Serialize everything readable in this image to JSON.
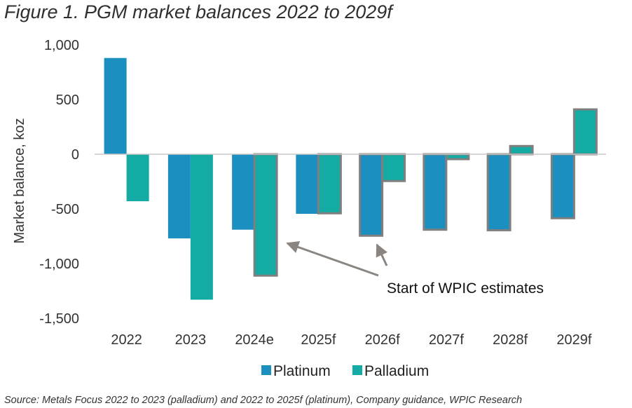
{
  "title": "Figure 1. PGM market balances 2022 to 2029f",
  "source": "Source: Metals Focus 2022 to 2023 (palladium) and 2022 to 2025f (platinum), Company guidance, WPIC Research",
  "chart_data": {
    "type": "bar",
    "title": "Figure 1. PGM market balances 2022 to 2029f",
    "xlabel": "",
    "ylabel": "Market balance, koz",
    "ylim": [
      -1500,
      1000
    ],
    "yticks": [
      1000,
      500,
      0,
      -500,
      -1000,
      -1500
    ],
    "ytick_labels": [
      "1,000",
      "500",
      "0",
      "-500",
      "-1,000",
      "-1,500"
    ],
    "categories": [
      "2022",
      "2023",
      "2024e",
      "2025f",
      "2026f",
      "2027f",
      "2028f",
      "2029f"
    ],
    "series": [
      {
        "name": "Platinum",
        "color": "#1a8fc0",
        "values": [
          880,
          -770,
          -690,
          -545,
          -745,
          -690,
          -695,
          -585
        ],
        "estimate_from_index": 4
      },
      {
        "name": "Palladium",
        "color": "#13aba3",
        "values": [
          -430,
          -1330,
          -1110,
          -540,
          -245,
          -45,
          75,
          410
        ],
        "estimate_from_index": 2
      }
    ],
    "estimate_border_color": "#7f7f7f",
    "legend": "bottom",
    "grid": false,
    "annotation": {
      "text": "Start of WPIC estimates"
    }
  }
}
